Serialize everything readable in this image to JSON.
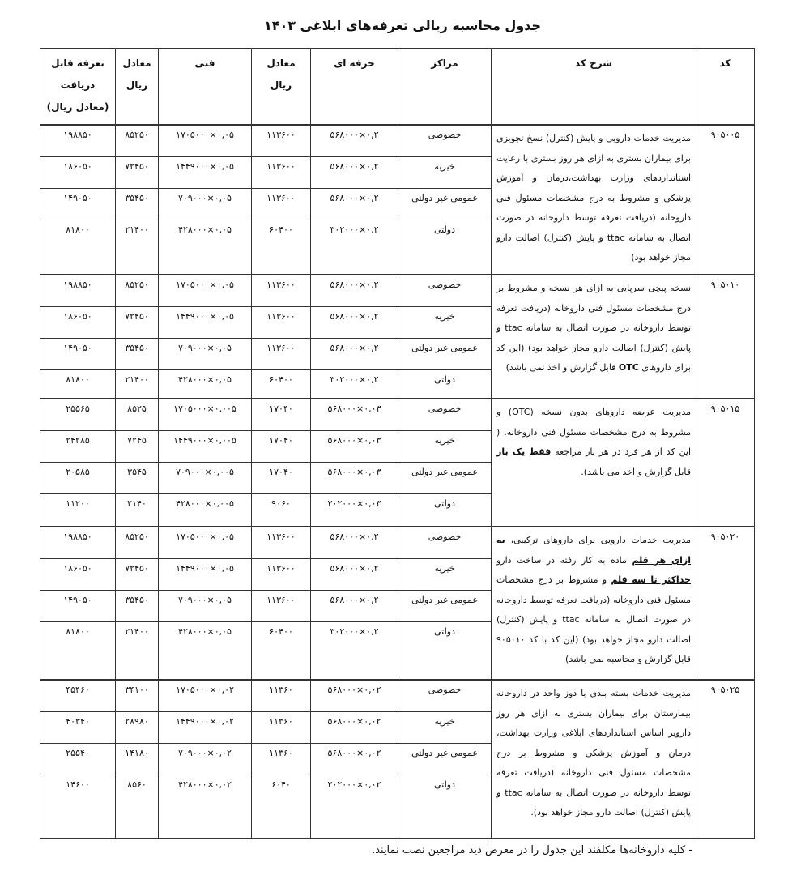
{
  "title": "جدول محاسبه ریالی تعرفه‌های ابلاغی ۱۴۰۳",
  "headers": [
    "کد",
    "شرح کد",
    "مراکز",
    "حرفه ای",
    "معادل ریال",
    "فنی",
    "معادل ریال",
    "تعرفه قابل دریافت (معادل ریال)"
  ],
  "centers": [
    "خصوصی",
    "خیریه",
    "عمومی غیر دولتی",
    "دولتی"
  ],
  "blocks": [
    {
      "code": "۹۰۵۰۰۵",
      "desc": [
        {
          "t": "مدیریت خدمات دارویی و پایش (کنترل) نسخ تجویزی برای بیماران بستری به ازای هر روز بستری با رعایت استانداردهای وزارت بهداشت،درمان و آموزش پزشکی و مشروط به درج مشخصات مسئول فنی داروخانه (دریافت تعرفه توسط داروخانه در صورت اتصال به سامانه ttac و پایش (کنترل) اصالت دارو مجاز خواهد بود)"
        }
      ],
      "rows": [
        [
          "۵۶۸۰۰۰×۰,۲",
          "۱۱۳۶۰۰",
          "۱۷۰۵۰۰۰×۰,۰۵",
          "۸۵۲۵۰",
          "۱۹۸۸۵۰"
        ],
        [
          "۵۶۸۰۰۰×۰,۲",
          "۱۱۳۶۰۰",
          "۱۴۴۹۰۰۰×۰,۰۵",
          "۷۲۴۵۰",
          "۱۸۶۰۵۰"
        ],
        [
          "۵۶۸۰۰۰×۰,۲",
          "۱۱۳۶۰۰",
          "۷۰۹۰۰۰×۰,۰۵",
          "۳۵۴۵۰",
          "۱۴۹۰۵۰"
        ],
        [
          "۳۰۲۰۰۰×۰,۲",
          "۶۰۴۰۰",
          "۴۲۸۰۰۰×۰,۰۵",
          "۲۱۴۰۰",
          "۸۱۸۰۰"
        ]
      ]
    },
    {
      "code": "۹۰۵۰۱۰",
      "desc": [
        {
          "t": "نسخه پیچی سرپایی به ازای هر نسخه و مشروط بر درج مشخصات مسئول فنی داروخانه (دریافت تعرفه توسط داروخانه در صورت اتصال به سامانه ttac و پایش (کنترل) اصالت دارو مجاز خواهد بود) (این کد برای داروهای "
        },
        {
          "t": "OTC",
          "b": true
        },
        {
          "t": " قابل گزارش و اخذ نمی باشد)"
        }
      ],
      "rows": [
        [
          "۵۶۸۰۰۰×۰,۲",
          "۱۱۳۶۰۰",
          "۱۷۰۵۰۰۰×۰,۰۵",
          "۸۵۲۵۰",
          "۱۹۸۸۵۰"
        ],
        [
          "۵۶۸۰۰۰×۰,۲",
          "۱۱۳۶۰۰",
          "۱۴۴۹۰۰۰×۰,۰۵",
          "۷۲۴۵۰",
          "۱۸۶۰۵۰"
        ],
        [
          "۵۶۸۰۰۰×۰,۲",
          "۱۱۳۶۰۰",
          "۷۰۹۰۰۰×۰,۰۵",
          "۳۵۴۵۰",
          "۱۴۹۰۵۰"
        ],
        [
          "۳۰۲۰۰۰×۰,۲",
          "۶۰۴۰۰",
          "۴۲۸۰۰۰×۰,۰۵",
          "۲۱۴۰۰",
          "۸۱۸۰۰"
        ]
      ]
    },
    {
      "code": "۹۰۵۰۱۵",
      "desc": [
        {
          "t": "مدیریت عرضه داروهای بدون نسخه (OTC) و مشروط به درج مشخصات مسئول فنی داروخانه. ( این کد از هر فرد در هر بار مراجعه "
        },
        {
          "t": "فقط یک بار",
          "b": true
        },
        {
          "t": " قابل گزارش و اخذ می باشد)."
        }
      ],
      "rows": [
        [
          "۵۶۸۰۰۰×۰,۰۳",
          "۱۷۰۴۰",
          "۱۷۰۵۰۰۰×۰,۰۰۵",
          "۸۵۲۵",
          "۲۵۵۶۵"
        ],
        [
          "۵۶۸۰۰۰×۰,۰۳",
          "۱۷۰۴۰",
          "۱۴۴۹۰۰۰×۰,۰۰۵",
          "۷۲۴۵",
          "۲۴۲۸۵"
        ],
        [
          "۵۶۸۰۰۰×۰,۰۳",
          "۱۷۰۴۰",
          "۷۰۹۰۰۰×۰,۰۰۵",
          "۳۵۴۵",
          "۲۰۵۸۵"
        ],
        [
          "۳۰۲۰۰۰×۰,۰۳",
          "۹۰۶۰",
          "۴۲۸۰۰۰×۰,۰۰۵",
          "۲۱۴۰",
          "۱۱۲۰۰"
        ]
      ]
    },
    {
      "code": "۹۰۵۰۲۰",
      "desc": [
        {
          "t": "مدیریت خدمات دارویی برای داروهای ترکیبی، "
        },
        {
          "t": "به ازای هر قلم",
          "b": true,
          "u": true
        },
        {
          "t": " ماده به کار رفته در ساخت دارو "
        },
        {
          "t": "حداکثر تا سه قلم",
          "b": true,
          "u": true
        },
        {
          "t": " و مشروط بر درج مشخصات مسئول فنی داروخانه (دریافت تعرفه توسط داروخانه در صورت اتصال به سامانه ttac و پایش (کنترل) اصالت دارو مجاز خواهد بود) (این کد با کد ۹۰۵۰۱۰ قابل گزارش و محاسبه نمی باشد)"
        }
      ],
      "rows": [
        [
          "۵۶۸۰۰۰×۰,۲",
          "۱۱۳۶۰۰",
          "۱۷۰۵۰۰۰×۰,۰۵",
          "۸۵۲۵۰",
          "۱۹۸۸۵۰"
        ],
        [
          "۵۶۸۰۰۰×۰,۲",
          "۱۱۳۶۰۰",
          "۱۴۴۹۰۰۰×۰,۰۵",
          "۷۲۴۵۰",
          "۱۸۶۰۵۰"
        ],
        [
          "۵۶۸۰۰۰×۰,۲",
          "۱۱۳۶۰۰",
          "۷۰۹۰۰۰×۰,۰۵",
          "۳۵۴۵۰",
          "۱۴۹۰۵۰"
        ],
        [
          "۳۰۲۰۰۰×۰,۲",
          "۶۰۴۰۰",
          "۴۲۸۰۰۰×۰,۰۵",
          "۲۱۴۰۰",
          "۸۱۸۰۰"
        ]
      ]
    },
    {
      "code": "۹۰۵۰۲۵",
      "desc": [
        {
          "t": "مدیریت خدمات بسته بندی با دوز واحد در داروخانه بیمارستان برای بیماران بستری به ازای هر روز داروبر اساس استانداردهای ابلاغی وزارت بهداشت، درمان و آموزش پزشکی و مشروط بر درج مشخصات مسئول فنی داروخانه (دریافت تعرفه توسط داروخانه در صورت اتصال به سامانه ttac و پایش (کنترل) اصالت دارو مجاز خواهد بود)."
        }
      ],
      "rows": [
        [
          "۵۶۸۰۰۰×۰,۰۲",
          "۱۱۳۶۰",
          "۱۷۰۵۰۰۰×۰,۰۲",
          "۳۴۱۰۰",
          "۴۵۴۶۰"
        ],
        [
          "۵۶۸۰۰۰×۰,۰۲",
          "۱۱۳۶۰",
          "۱۴۴۹۰۰۰×۰,۰۲",
          "۲۸۹۸۰",
          "۴۰۳۴۰"
        ],
        [
          "۵۶۸۰۰۰×۰,۰۲",
          "۱۱۳۶۰",
          "۷۰۹۰۰۰×۰,۰۲",
          "۱۴۱۸۰",
          "۲۵۵۴۰"
        ],
        [
          "۳۰۲۰۰۰×۰,۰۲",
          "۶۰۴۰",
          "۴۲۸۰۰۰×۰,۰۲",
          "۸۵۶۰",
          "۱۴۶۰۰"
        ]
      ]
    }
  ],
  "note": "-   کلیه داروخانه‌ها مکلفند این جدول را در معرض دید مراجعین نصب نمایند."
}
